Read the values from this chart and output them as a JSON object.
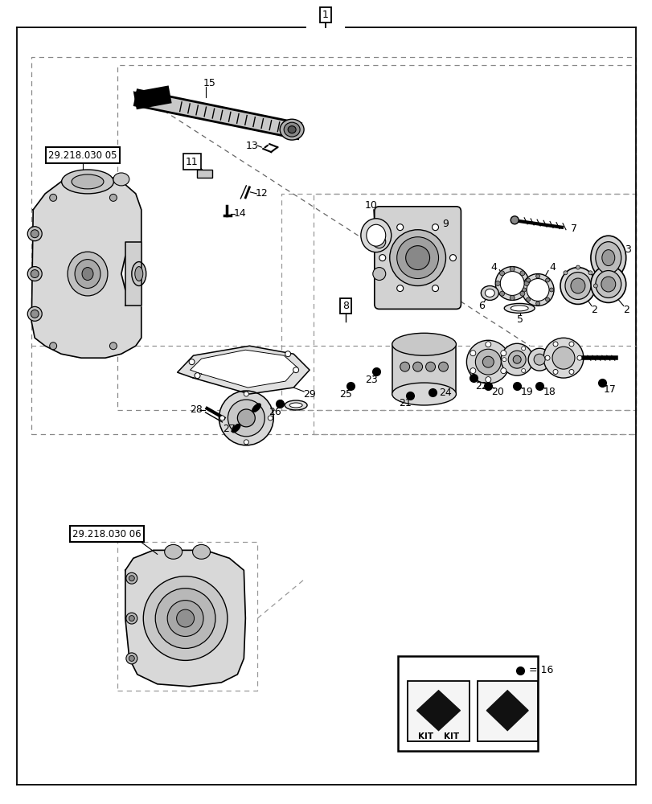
{
  "bg_color": "#ffffff",
  "fig_width": 8.12,
  "fig_height": 10.0,
  "dpi": 100,
  "ref_label_05": "29.218.030 05",
  "ref_label_06": "29.218.030 06"
}
